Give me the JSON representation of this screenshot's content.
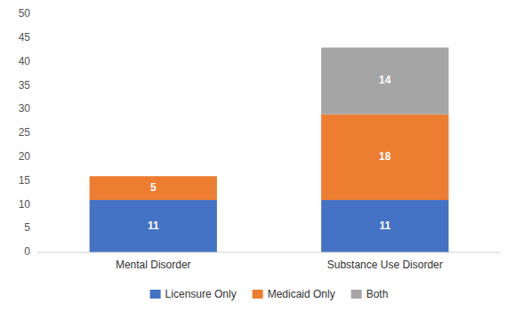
{
  "chart_data": {
    "type": "bar",
    "stacked": true,
    "data_labels": true,
    "grid": false,
    "legend": "bottom",
    "categories": [
      "Mental Disorder",
      "Substance Use Disorder"
    ],
    "series": [
      {
        "name": "Licensure Only",
        "values": [
          11,
          11
        ],
        "color": "#4472c4"
      },
      {
        "name": "Medicaid Only",
        "values": [
          5,
          18
        ],
        "color": "#ed7d31"
      },
      {
        "name": "Both",
        "values": [
          0,
          14
        ],
        "color": "#a5a5a5"
      }
    ],
    "ylim": [
      0,
      50
    ],
    "yticks": [
      0,
      5,
      10,
      15,
      20,
      25,
      30,
      35,
      40,
      45,
      50
    ]
  }
}
